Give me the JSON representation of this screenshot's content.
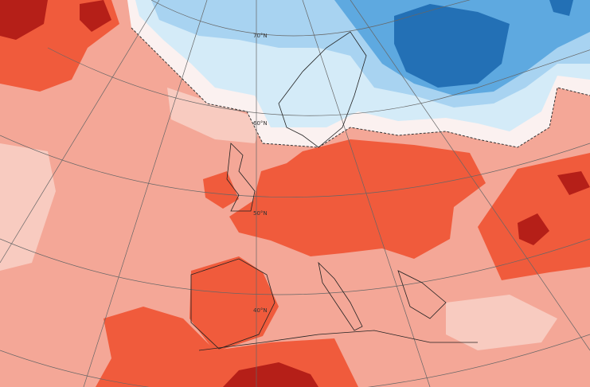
{
  "graticule": {
    "latitudes": [
      "70°N",
      "60°N",
      "50°N",
      "40°N"
    ]
  }
}
